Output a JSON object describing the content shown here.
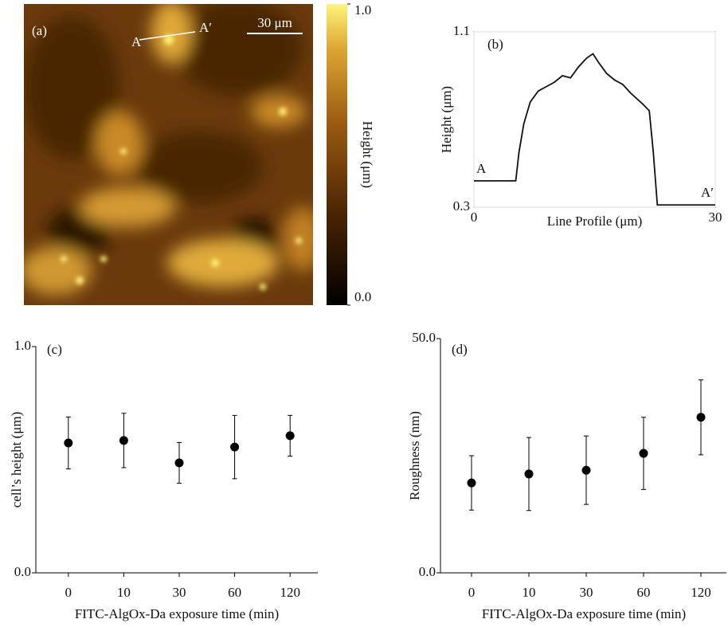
{
  "chart_data": [
    {
      "type": "image",
      "panel_label": "(a)",
      "line_labels": [
        "A",
        "A′"
      ],
      "scale_bar": "30 μm",
      "colorbar": {
        "label": "Height (μm)",
        "clim": [
          0,
          1
        ],
        "ticks": [
          {
            "value": 0,
            "label": "0.0"
          },
          {
            "value": 1,
            "label": "1.0"
          }
        ]
      }
    },
    {
      "type": "line",
      "panel_label": "(b)",
      "ylabel": "Height (μm)",
      "xlabel": "Line Profile (μm)",
      "point_labels": [
        "A",
        "A′"
      ],
      "x": [
        0,
        5.2,
        5.6,
        6.2,
        7.0,
        8.0,
        9.0,
        10.0,
        11.0,
        12.0,
        13.0,
        14.0,
        14.8,
        15.5,
        16.5,
        17.5,
        18.5,
        19.5,
        21.0,
        21.8,
        22.3,
        22.8,
        24,
        30
      ],
      "series": [
        {
          "color": "#111111",
          "values": [
            0.42,
            0.42,
            0.55,
            0.68,
            0.78,
            0.83,
            0.85,
            0.87,
            0.9,
            0.89,
            0.94,
            0.98,
            1.0,
            0.96,
            0.91,
            0.88,
            0.86,
            0.82,
            0.77,
            0.74,
            0.55,
            0.31,
            0.31,
            0.31
          ]
        }
      ],
      "xlim": [
        0,
        30
      ],
      "ylim": [
        0.3,
        1.1
      ],
      "xticks": [
        0,
        30
      ],
      "yticks": [
        0.3,
        1.1
      ],
      "grid": true
    },
    {
      "type": "errorbar",
      "panel_label": "(c)",
      "ylabel": "cell’s height (μm)",
      "xlabel": "FITC-AlgOx-Da exposure time (min)",
      "categories": [
        "0",
        "10",
        "30",
        "60",
        "120"
      ],
      "values": [
        0.574,
        0.585,
        0.486,
        0.556,
        0.606
      ],
      "errors": [
        0.115,
        0.12,
        0.09,
        0.14,
        0.09
      ],
      "color": "#000000",
      "ylim": [
        0,
        1
      ],
      "yticks": [
        {
          "value": 0,
          "label": "0.0"
        },
        {
          "value": 1,
          "label": "1.0"
        }
      ]
    },
    {
      "type": "errorbar",
      "panel_label": "(d)",
      "ylabel": "Roughness (nm)",
      "xlabel": "FITC-AlgOx-Da exposure time (min)",
      "categories": [
        "0",
        "10",
        "30",
        "60",
        "120"
      ],
      "values": [
        19.2,
        21.1,
        21.9,
        25.5,
        33.2
      ],
      "errors": [
        5.8,
        7.8,
        7.3,
        7.7,
        8.0
      ],
      "color": "#000000",
      "ylim": [
        0,
        50
      ],
      "yticks": [
        {
          "value": 0,
          "label": "0.0"
        },
        {
          "value": 50,
          "label": "50.0"
        }
      ]
    }
  ]
}
